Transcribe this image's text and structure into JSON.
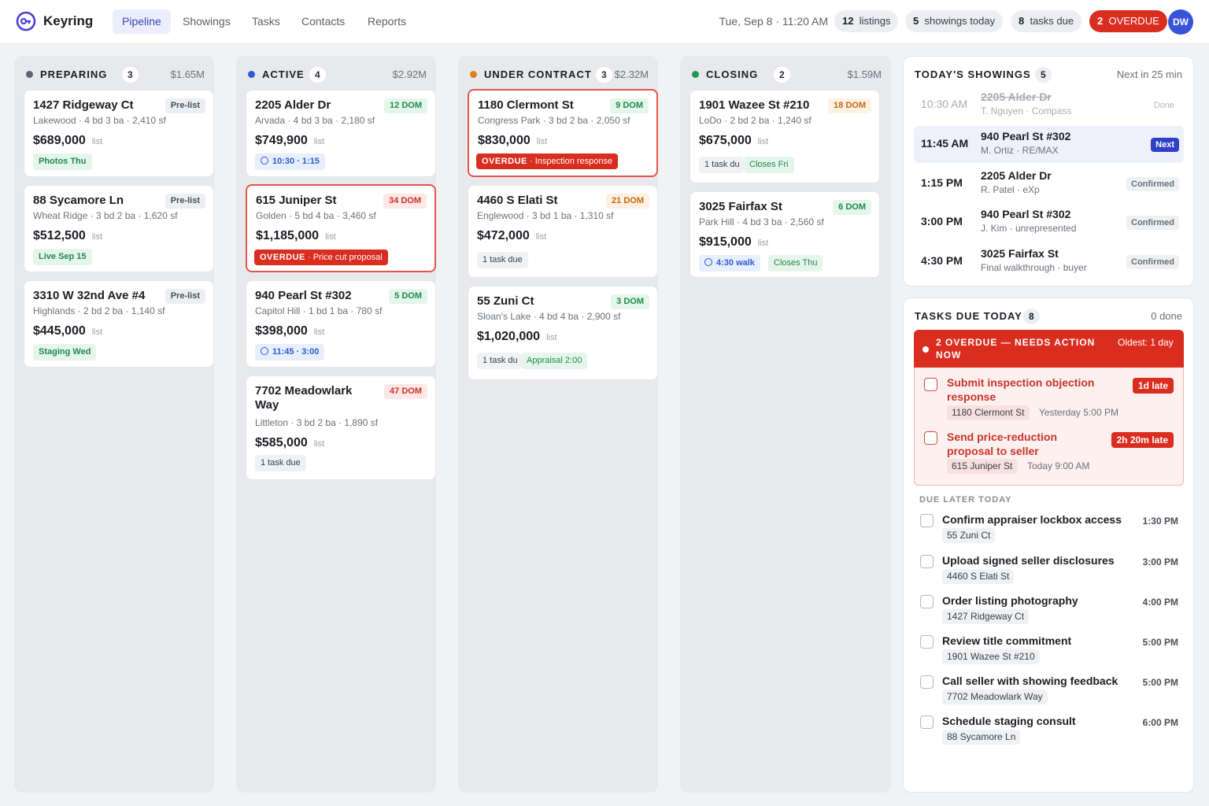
{
  "app": {
    "name": "Keyring"
  },
  "nav": [
    "Pipeline",
    "Showings",
    "Tasks",
    "Contacts",
    "Reports"
  ],
  "header": {
    "datetime": "Tue, Sep 8 · 11:20 AM",
    "stats": [
      {
        "num": "12",
        "label": "listings"
      },
      {
        "num": "5",
        "label": "showings today"
      },
      {
        "num": "8",
        "label": "tasks due"
      },
      {
        "num": "2",
        "label": "OVERDUE"
      }
    ],
    "avatar": "DW"
  },
  "colors": {
    "accent": "#3b46b8",
    "overdue": "#d92d20",
    "preparing": "#5b6472",
    "active": "#2f5bd6",
    "under_contract": "#e0801c",
    "closing": "#1e9a55"
  },
  "columns": [
    {
      "title": "PREPARING",
      "count": "3",
      "total": "$1.65M",
      "cards": [
        {
          "address": "1427 Ridgeway Ct",
          "badge": "Pre-list",
          "sub": "Lakewood · 4 bd 3 ba · 2,410 sf",
          "price": "$689,000",
          "list": "list",
          "tags": [
            {
              "text": "Photos Thu"
            }
          ]
        },
        {
          "address": "88 Sycamore Ln",
          "badge": "Pre-list",
          "sub": "Wheat Ridge · 3 bd 2 ba · 1,620 sf",
          "price": "$512,500",
          "list": "list",
          "tags": [
            {
              "text": "Live Sep 15"
            }
          ]
        },
        {
          "address": "3310 W 32nd Ave #4",
          "badge": "Pre-list",
          "sub": "Highlands · 2 bd 2 ba · 1,140 sf",
          "price": "$445,000",
          "list": "list",
          "tags": [
            {
              "text": "Staging Wed"
            }
          ]
        }
      ]
    },
    {
      "title": "ACTIVE",
      "count": "4",
      "total": "$2.92M",
      "cards": [
        {
          "address": "2205 Alder Dr",
          "badge": "12 DOM",
          "sub": "Arvada · 4 bd 3 ba · 2,180 sf",
          "price": "$749,900",
          "list": "list",
          "tags": [
            {
              "text": "10:30 · 1:15"
            }
          ]
        },
        {
          "address": "615 Juniper St",
          "badge": "34 DOM",
          "sub": "Golden · 5 bd 4 ba · 3,460 sf",
          "price": "$1,185,000",
          "list": "list",
          "overdue": {
            "label": "OVERDUE",
            "text": "· Price cut proposal"
          }
        },
        {
          "address": "940 Pearl St #302",
          "badge": "5 DOM",
          "sub": "Capitol Hill · 1 bd 1 ba · 780 sf",
          "price": "$398,000",
          "list": "list",
          "tags": [
            {
              "text": "11:45 · 3:00"
            }
          ]
        },
        {
          "address": "7702 Meadowlark Way",
          "badge": "47 DOM",
          "sub": "Littleton · 3 bd 2 ba · 1,890 sf",
          "price": "$585,000",
          "list": "list",
          "tags": [
            {
              "text": "1 task due"
            }
          ]
        }
      ]
    },
    {
      "title": "UNDER CONTRACT",
      "count": "3",
      "total": "$2.32M",
      "cards": [
        {
          "address": "1180 Clermont St",
          "badge": "9 DOM",
          "sub": "Congress Park · 3 bd 2 ba · 2,050 sf",
          "price": "$830,000",
          "list": "list",
          "overdue": {
            "label": "OVERDUE",
            "text": "· Inspection response"
          }
        },
        {
          "address": "4460 S Elati St",
          "badge": "21 DOM",
          "sub": "Englewood · 3 bd 1 ba · 1,310 sf",
          "price": "$472,000",
          "list": "list",
          "tags": [
            {
              "text": "1 task due"
            }
          ]
        },
        {
          "address": "55 Zuni Ct",
          "badge": "3 DOM",
          "sub": "Sloan's Lake · 4 bd 4 ba · 2,900 sf",
          "price": "$1,020,000",
          "list": "list",
          "tags": [
            {
              "text": "1 task du"
            },
            {
              "text": "Appraisal 2:00"
            }
          ]
        }
      ]
    },
    {
      "title": "CLOSING",
      "count": "2",
      "total": "$1.59M",
      "cards": [
        {
          "address": "1901 Wazee St #210",
          "badge": "18 DOM",
          "sub": "LoDo · 2 bd 2 ba · 1,240 sf",
          "price": "$675,000",
          "list": "list",
          "tags": [
            {
              "text": "1 task du"
            },
            {
              "text": "Closes Fri"
            }
          ]
        },
        {
          "address": "3025 Fairfax St",
          "badge": "6 DOM",
          "sub": "Park Hill · 4 bd 3 ba · 2,560 sf",
          "price": "$915,000",
          "list": "list",
          "tags": [
            {
              "text": "4:30 walk"
            },
            {
              "text": "Closes Thu"
            }
          ]
        }
      ]
    }
  ],
  "showings": {
    "title": "TODAY'S SHOWINGS",
    "count": "5",
    "next": "Next in 25 min",
    "items": [
      {
        "time": "10:30 AM",
        "address": "2205 Alder Dr",
        "agent": "T. Nguyen · Compass",
        "status": "Done"
      },
      {
        "time": "11:45 AM",
        "address": "940 Pearl St #302",
        "agent": "M. Ortiz · RE/MAX",
        "status": "Next"
      },
      {
        "time": "1:15 PM",
        "address": "2205 Alder Dr",
        "agent": "R. Patel · eXp",
        "status": "Confirmed"
      },
      {
        "time": "3:00 PM",
        "address": "940 Pearl St #302",
        "agent": "J. Kim · unrepresented",
        "status": "Confirmed"
      },
      {
        "time": "4:30 PM",
        "address": "3025 Fairfax St",
        "agent": "Final walkthrough · buyer",
        "status": "Confirmed"
      }
    ]
  },
  "tasks": {
    "title": "TASKS DUE TODAY",
    "count": "8",
    "done": "0 done",
    "overdue_banner": "2 OVERDUE — NEEDS ACTION NOW",
    "oldest": "Oldest: 1 day",
    "overdue": [
      {
        "title": "Submit inspection objection response",
        "late": "1d late",
        "property": "1180 Clermont St",
        "due": "Yesterday 5:00 PM"
      },
      {
        "title": "Send price-reduction proposal to seller",
        "late": "2h 20m late",
        "property": "615 Juniper St",
        "due": "Today 9:00 AM"
      }
    ],
    "later_label": "DUE LATER TODAY",
    "later": [
      {
        "title": "Confirm appraiser lockbox access",
        "property": "55 Zuni Ct",
        "time": "1:30 PM"
      },
      {
        "title": "Upload signed seller disclosures",
        "property": "4460 S Elati St",
        "time": "3:00 PM"
      },
      {
        "title": "Order listing photography",
        "property": "1427 Ridgeway Ct",
        "time": "4:00 PM"
      },
      {
        "title": "Review title commitment",
        "property": "1901 Wazee St #210",
        "time": "5:00 PM"
      },
      {
        "title": "Call seller with showing feedback",
        "property": "7702 Meadowlark Way",
        "time": "5:00 PM"
      },
      {
        "title": "Schedule staging consult",
        "property": "88 Sycamore Ln",
        "time": "6:00 PM"
      }
    ]
  }
}
